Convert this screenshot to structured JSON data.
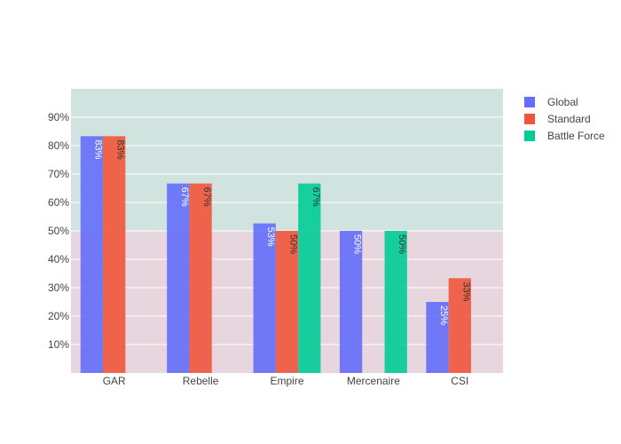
{
  "chart_data": {
    "type": "bar",
    "categories": [
      "GAR",
      "Rebelle",
      "Empire",
      "Mercenaire",
      "CSI"
    ],
    "series": [
      {
        "name": "Global",
        "color": "#636EFA",
        "values": [
          0.8333,
          0.6667,
          0.5263,
          0.5,
          0.25
        ],
        "labels": [
          "83%",
          "67%",
          "53%",
          "50%",
          "25%"
        ]
      },
      {
        "name": "Standard",
        "color": "#EF553B",
        "values": [
          0.8333,
          0.6667,
          0.5,
          null,
          0.3333
        ],
        "labels": [
          "83%",
          "67%",
          "50%",
          "",
          "33%"
        ]
      },
      {
        "name": "Battle Force",
        "color": "#00CC96",
        "values": [
          null,
          null,
          0.6667,
          0.5,
          null
        ],
        "labels": [
          "",
          "",
          "67%",
          "50%",
          ""
        ]
      }
    ],
    "ylim": [
      0,
      1.0
    ],
    "yticks": [
      0.1,
      0.2,
      0.3,
      0.4,
      0.5,
      0.6,
      0.7,
      0.8,
      0.9
    ],
    "ytick_labels": [
      "10%",
      "20%",
      "30%",
      "40%",
      "50%",
      "60%",
      "70%",
      "80%",
      "90%"
    ],
    "threshold": 0.5,
    "bands": [
      {
        "from": 0.5,
        "to": 1.0,
        "color": "#D1E3DF"
      },
      {
        "from": 0.0,
        "to": 0.5,
        "color": "#E8D6DF"
      }
    ],
    "grid": true,
    "legend_position": "top-right",
    "title": "",
    "xlabel": "",
    "ylabel": ""
  }
}
